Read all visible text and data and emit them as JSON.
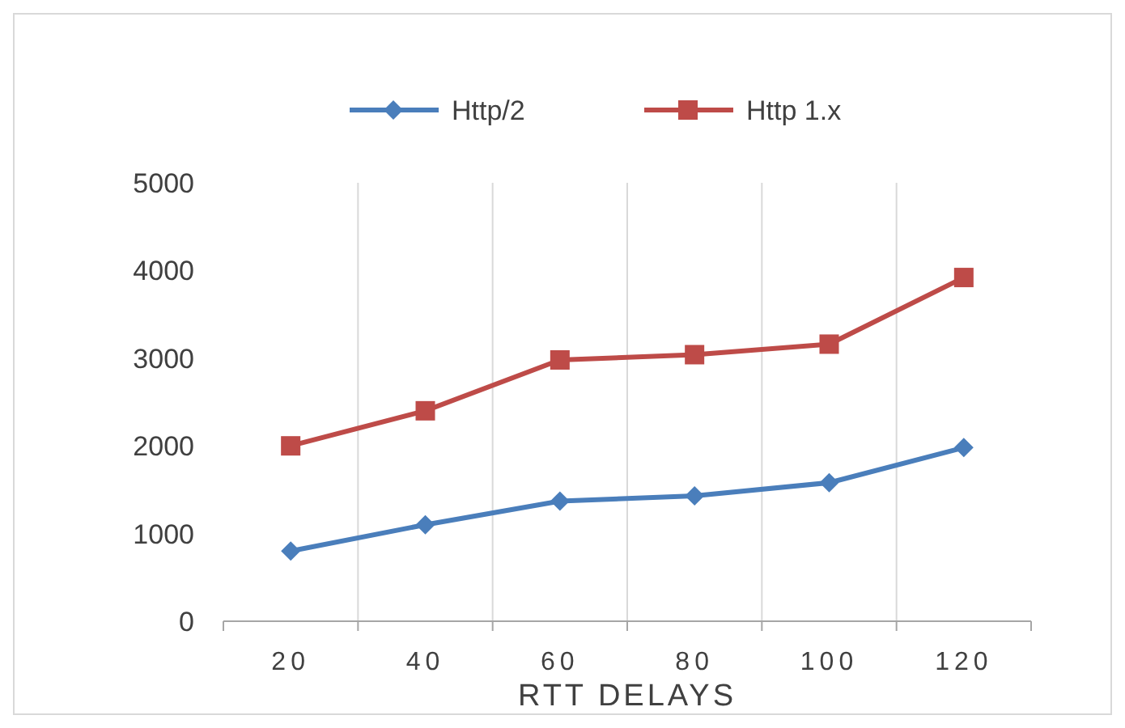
{
  "chart_data": {
    "type": "line",
    "xlabel": "RTT DELAYS",
    "categories": [
      "20",
      "40",
      "60",
      "80",
      "100",
      "120"
    ],
    "series": [
      {
        "name": "Http/2",
        "color": "#4a7ebb",
        "marker": "diamond",
        "values": [
          800,
          1100,
          1370,
          1430,
          1580,
          1980
        ]
      },
      {
        "name": "Http 1.x",
        "color": "#be4b48",
        "marker": "square",
        "values": [
          2000,
          2400,
          2980,
          3040,
          3160,
          3920
        ]
      }
    ],
    "ylim": [
      0,
      5000
    ],
    "yticks": [
      0,
      1000,
      2000,
      3000,
      4000,
      5000
    ],
    "grid": "x",
    "legend": "top"
  }
}
